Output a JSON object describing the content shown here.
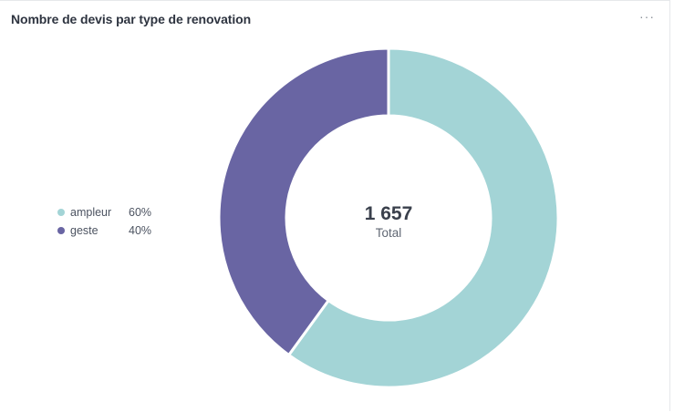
{
  "card": {
    "title": "Nombre de devis par type de renovation",
    "more_label": "···"
  },
  "chart_data": {
    "type": "pie",
    "donut": true,
    "title": "Nombre de devis par type de renovation",
    "categories": [
      "ampleur",
      "geste"
    ],
    "values": [
      60,
      40
    ],
    "unit": "%",
    "colors": [
      "#a3d4d6",
      "#6965a3"
    ],
    "total": {
      "value": "1 657",
      "label": "Total"
    },
    "legend_position": "left"
  },
  "legend": {
    "items": [
      {
        "label": "ampleur",
        "pct": "60%",
        "color": "#a3d4d6"
      },
      {
        "label": "geste",
        "pct": "40%",
        "color": "#6965a3"
      }
    ]
  }
}
